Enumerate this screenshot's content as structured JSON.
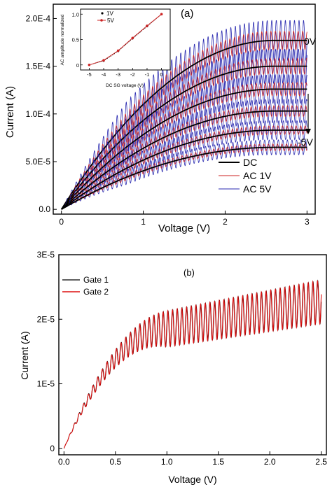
{
  "chart_data": [
    {
      "panel": "a",
      "type": "line",
      "panel_label": "(a)",
      "xlabel": "Voltage (V)",
      "ylabel": "Current (A)",
      "xlim": [
        -0.1,
        3.1
      ],
      "ylim": [
        -5e-06,
        0.000215
      ],
      "xticks": [
        0,
        1,
        2,
        3
      ],
      "xtick_labels": [
        "0",
        "1",
        "2",
        "3"
      ],
      "yticks": [
        0,
        5e-05,
        0.0001,
        0.00015,
        0.0002
      ],
      "ytick_labels": [
        "0.0",
        "5.0E-5",
        "1.0E-4",
        "1.5E-4",
        "2.0E-4"
      ],
      "gate_top_label": "0V",
      "gate_bottom_label": "-5V",
      "dc_saturation_currents": [
        0.000177,
        0.00015,
        0.000126,
        0.000103,
        8.3e-05,
        6.5e-05
      ],
      "series": [
        {
          "name": "DC",
          "color": "#000000"
        },
        {
          "name": "AC 1V",
          "color": "#cc2222"
        },
        {
          "name": "AC 5V",
          "color": "#2a2ab0"
        }
      ],
      "legend_position": "bottom-right",
      "inset": {
        "type": "line",
        "xlabel": "DC SG voltage (V)",
        "ylabel": "AC amplitude normalized",
        "xlim": [
          -5.6,
          0.6
        ],
        "ylim": [
          -0.1,
          1.1
        ],
        "xticks": [
          -5,
          -4,
          -3,
          -2,
          -1,
          0
        ],
        "xtick_labels": [
          "-5",
          "-4",
          "-3",
          "-2",
          "-1",
          "0"
        ],
        "yticks": [
          0,
          0.5,
          1.0
        ],
        "ytick_labels": [
          "0",
          "0.5",
          "1.0"
        ],
        "x": [
          -5,
          -4,
          -3,
          -2,
          -1,
          0
        ],
        "series": [
          {
            "name": "1V",
            "color": "#000000",
            "values": [
              0.0,
              0.08,
              0.27,
              0.52,
              0.76,
              1.0
            ]
          },
          {
            "name": "5V",
            "color": "#cc2222",
            "values": [
              0.0,
              0.09,
              0.28,
              0.53,
              0.77,
              1.0
            ]
          }
        ]
      }
    },
    {
      "panel": "b",
      "type": "line",
      "panel_label": "(b)",
      "xlabel": "Voltage (V)",
      "ylabel": "Current (A)",
      "xlim": [
        -0.05,
        2.55
      ],
      "ylim": [
        -1e-06,
        3e-05
      ],
      "xticks": [
        0,
        0.5,
        1.0,
        1.5,
        2.0,
        2.5
      ],
      "xtick_labels": [
        "0.0",
        "0.5",
        "1.0",
        "1.5",
        "2.0",
        "2.5"
      ],
      "yticks": [
        0,
        1e-05,
        2e-05,
        3e-05
      ],
      "ytick_labels": [
        "0",
        "1E-5",
        "2E-5",
        "3E-5"
      ],
      "series": [
        {
          "name": "Gate 1",
          "color": "#000000"
        },
        {
          "name": "Gate 2",
          "color": "#dd1111"
        }
      ],
      "legend_position": "top-left"
    }
  ]
}
